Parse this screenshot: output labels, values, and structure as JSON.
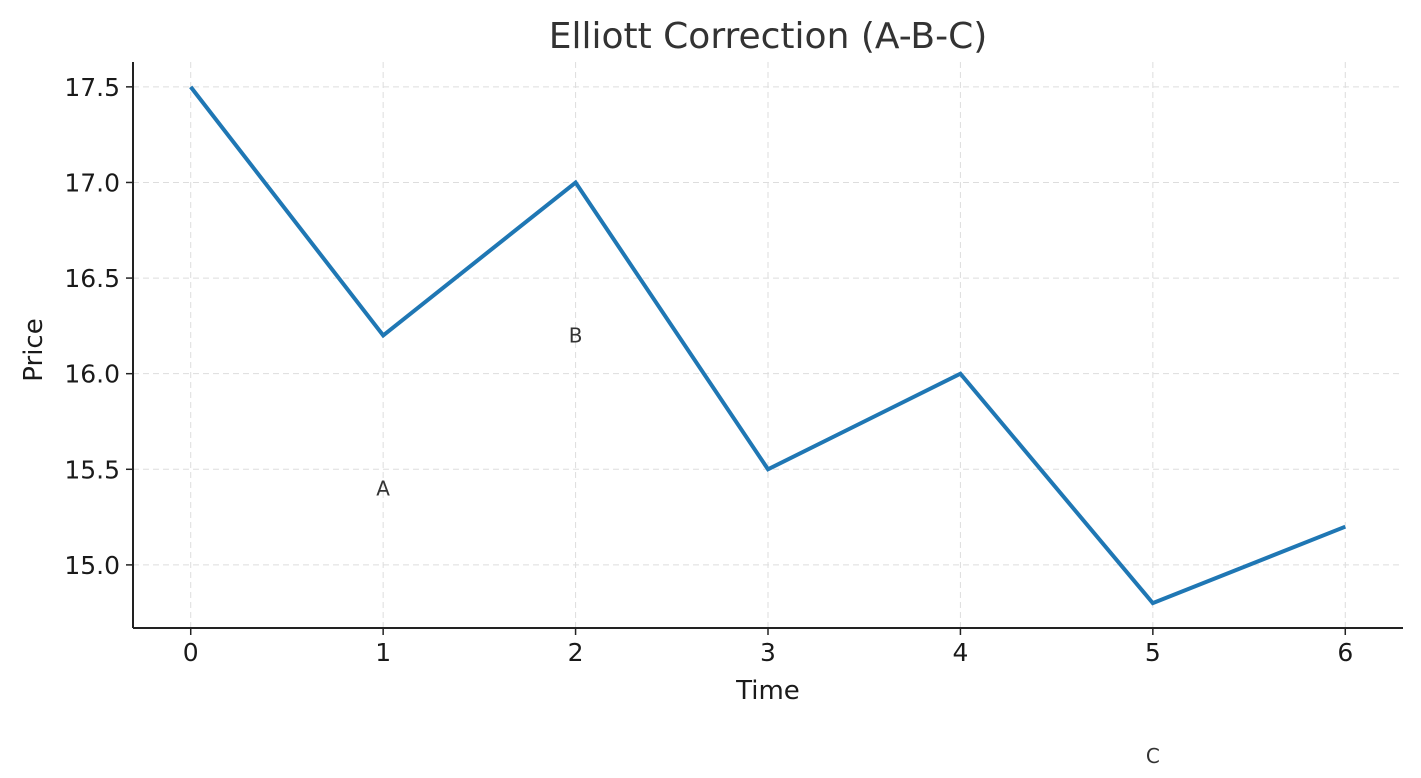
{
  "chart_data": {
    "type": "line",
    "title": "Elliott Correction (A-B-C)",
    "xlabel": "Time",
    "ylabel": "Price",
    "x": [
      0,
      1,
      2,
      3,
      4,
      5,
      6
    ],
    "series": [
      {
        "values": [
          17.5,
          16.2,
          17.0,
          15.5,
          16.0,
          14.8,
          15.2
        ],
        "color": "#1f77b4"
      }
    ],
    "xticks": [
      "0",
      "1",
      "2",
      "3",
      "4",
      "5",
      "6"
    ],
    "yticks": [
      "15.0",
      "15.5",
      "16.0",
      "16.5",
      "17.0",
      "17.5"
    ],
    "xlim": [
      -0.3,
      6.3
    ],
    "ylim": [
      14.67,
      17.63
    ],
    "grid": true,
    "annotations": [
      {
        "text": "A",
        "x": 1,
        "y": 15.4
      },
      {
        "text": "B",
        "x": 2,
        "y": 16.2
      },
      {
        "text": "C",
        "x": 5,
        "y": 14.0
      }
    ]
  }
}
